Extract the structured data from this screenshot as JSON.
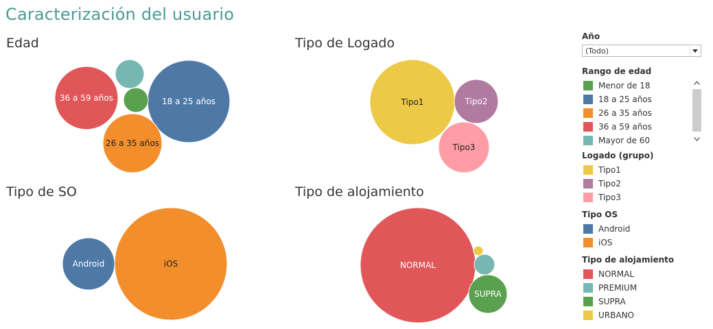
{
  "title": "Caracterización del usuario",
  "colors": {
    "blue": "#4e79a7",
    "orange": "#f28e2b",
    "red": "#e15759",
    "teal": "#76b7b2",
    "green": "#59a14f",
    "yellow": "#edc948",
    "purple": "#b07aa1",
    "pink": "#ff9da7"
  },
  "chart_data": [
    {
      "type": "bubble",
      "title": "Edad",
      "series": [
        {
          "name": "18 a 25 años",
          "label": "18 a 25 años",
          "color": "#4e79a7"
        },
        {
          "name": "36 a 59 años",
          "label": "36 a 59 años",
          "color": "#e15759"
        },
        {
          "name": "26 a 35 años",
          "label": "26 a 35 años",
          "color": "#f28e2b"
        },
        {
          "name": "Mayor de 60",
          "label": "",
          "color": "#76b7b2"
        },
        {
          "name": "Menor de 18",
          "label": "",
          "color": "#59a14f"
        }
      ]
    },
    {
      "type": "bubble",
      "title": "Tipo de Logado",
      "series": [
        {
          "name": "Tipo1",
          "label": "Tipo1",
          "color": "#edc948"
        },
        {
          "name": "Tipo2",
          "label": "Tipo2",
          "color": "#b07aa1"
        },
        {
          "name": "Tipo3",
          "label": "Tipo3",
          "color": "#ff9da7"
        }
      ]
    },
    {
      "type": "bubble",
      "title": "Tipo de SO",
      "series": [
        {
          "name": "Android",
          "label": "Android",
          "color": "#4e79a7"
        },
        {
          "name": "iOS",
          "label": "iOS",
          "color": "#f28e2b"
        }
      ]
    },
    {
      "type": "bubble",
      "title": "Tipo de alojamiento",
      "series": [
        {
          "name": "NORMAL",
          "label": "NORMAL",
          "color": "#e15759"
        },
        {
          "name": "SUPRA",
          "label": "SUPRA",
          "color": "#59a14f"
        },
        {
          "name": "PREMIUM",
          "label": "",
          "color": "#76b7b2"
        },
        {
          "name": "URBANO",
          "label": "",
          "color": "#edc948"
        }
      ]
    }
  ],
  "filters": {
    "year": {
      "label": "Año",
      "value": "(Todo)"
    }
  },
  "legends": [
    {
      "title": "Rango de edad",
      "items": [
        {
          "label": "Menor de 18",
          "color": "#59a14f"
        },
        {
          "label": "18 a 25 años",
          "color": "#4e79a7"
        },
        {
          "label": "26 a 35 años",
          "color": "#f28e2b"
        },
        {
          "label": "36 a 59 años",
          "color": "#e15759"
        },
        {
          "label": "Mayor de 60",
          "color": "#76b7b2"
        }
      ]
    },
    {
      "title": "Logado (grupo)",
      "items": [
        {
          "label": "Tipo1",
          "color": "#edc948"
        },
        {
          "label": "Tipo2",
          "color": "#b07aa1"
        },
        {
          "label": "Tipo3",
          "color": "#ff9da7"
        }
      ]
    },
    {
      "title": "Tipo OS",
      "items": [
        {
          "label": "Android",
          "color": "#4e79a7"
        },
        {
          "label": "iOS",
          "color": "#f28e2b"
        }
      ]
    },
    {
      "title": "Tipo de alojamiento",
      "items": [
        {
          "label": "NORMAL",
          "color": "#e15759"
        },
        {
          "label": "PREMIUM",
          "color": "#76b7b2"
        },
        {
          "label": "SUPRA",
          "color": "#59a14f"
        },
        {
          "label": "URBANO",
          "color": "#edc948"
        }
      ]
    }
  ],
  "icons": {
    "dropdown": "chevron-down-icon",
    "scroll_up": "chevron-up-icon",
    "scroll_down": "chevron-down-icon"
  }
}
